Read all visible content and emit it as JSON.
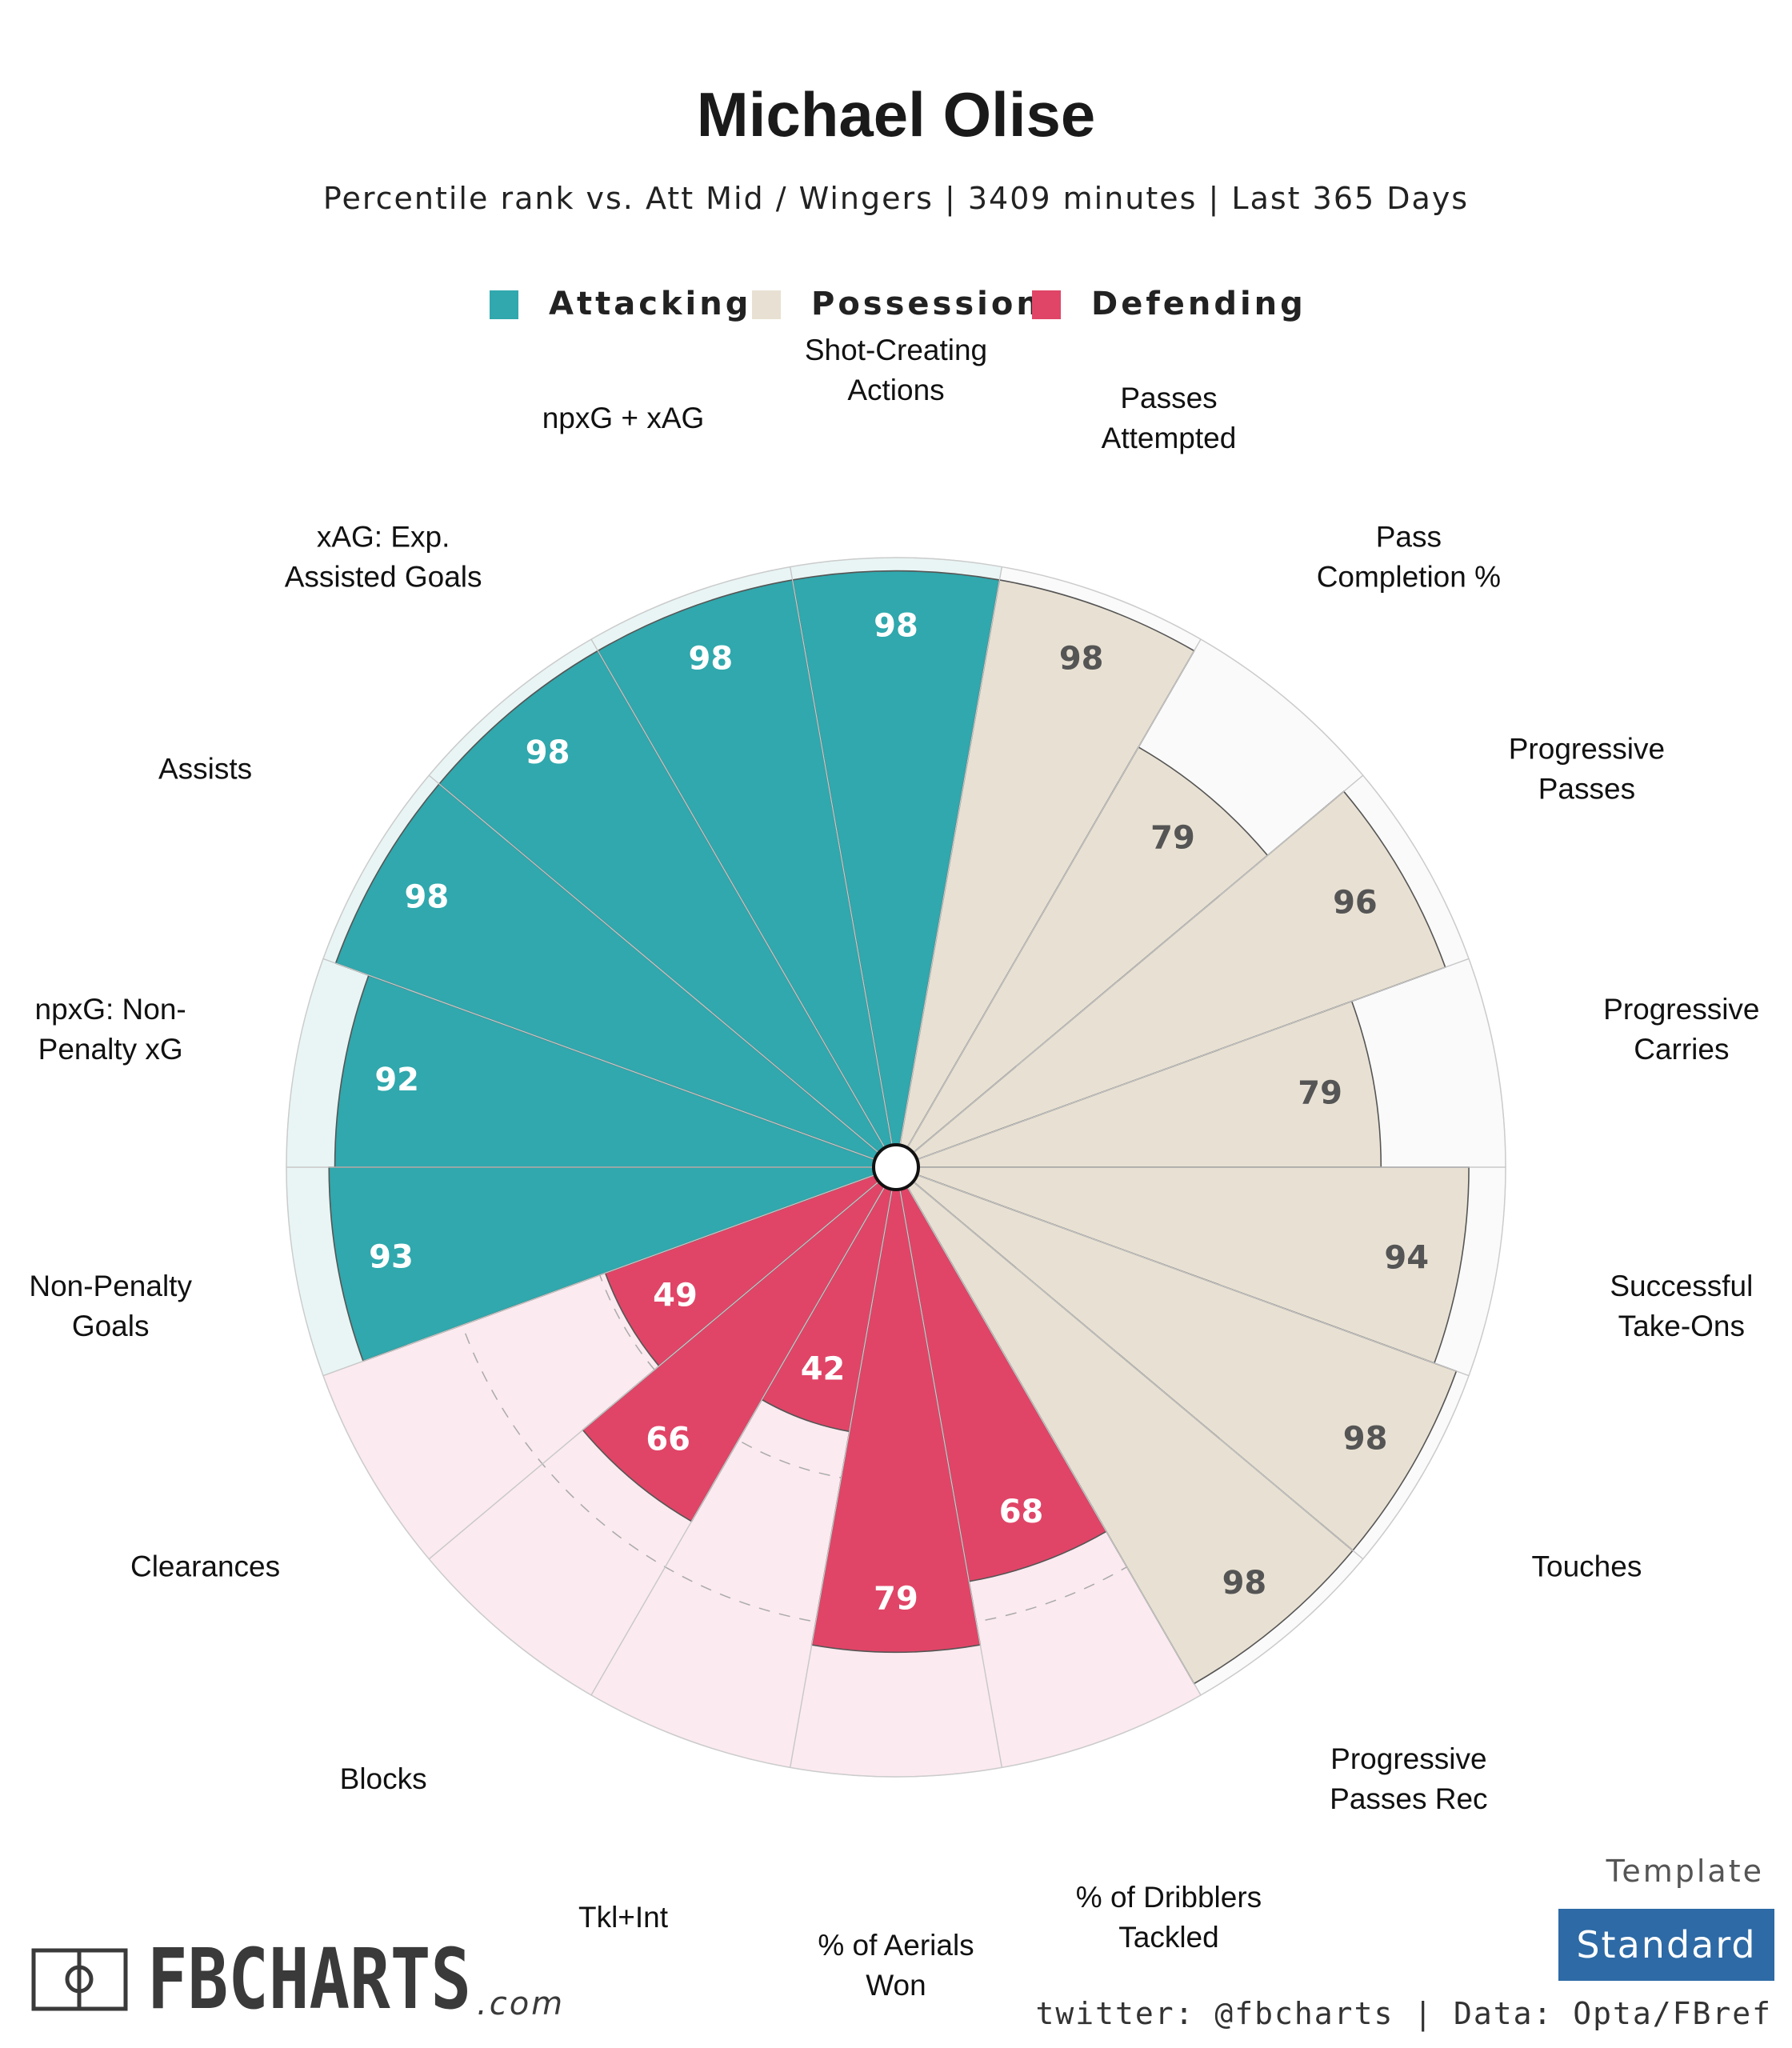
{
  "header": {
    "title": "Michael Olise",
    "subtitle": "Percentile rank vs. Att Mid / Wingers | 3409 minutes | Last 365 Days"
  },
  "legend": [
    {
      "label": "Attacking",
      "color": "#30a8ad"
    },
    {
      "label": "Possession",
      "color": "#e8e1d3"
    },
    {
      "label": "Defending",
      "color": "#e04567"
    }
  ],
  "chart_data": {
    "type": "polar-bar",
    "scale_max": 100,
    "categories_colors": {
      "Attacking": {
        "fill": "#30a8ad",
        "bg": "#e9f5f5",
        "text": "#ffffff"
      },
      "Possession": {
        "fill": "#e8e1d3",
        "bg": "#fafafa",
        "text": "#555555"
      },
      "Defending": {
        "fill": "#e04567",
        "bg": "#fbeaef",
        "text": "#ffffff"
      }
    },
    "metrics": [
      {
        "label": "Shot-Creating Actions",
        "lines": [
          "Shot-Creating",
          "Actions"
        ],
        "value": 98,
        "category": "Attacking"
      },
      {
        "label": "Passes Attempted",
        "lines": [
          "Passes",
          "Attempted"
        ],
        "value": 98,
        "category": "Possession"
      },
      {
        "label": "Pass Completion %",
        "lines": [
          "Pass",
          "Completion %"
        ],
        "value": 79,
        "category": "Possession"
      },
      {
        "label": "Progressive Passes",
        "lines": [
          "Progressive",
          "Passes"
        ],
        "value": 96,
        "category": "Possession"
      },
      {
        "label": "Progressive Carries",
        "lines": [
          "Progressive",
          "Carries"
        ],
        "value": 79,
        "category": "Possession"
      },
      {
        "label": "Successful Take-Ons",
        "lines": [
          "Successful",
          "Take-Ons"
        ],
        "value": 94,
        "category": "Possession"
      },
      {
        "label": "Touches",
        "lines": [
          "Touches"
        ],
        "value": 98,
        "category": "Possession"
      },
      {
        "label": "Progressive Passes Rec",
        "lines": [
          "Progressive",
          "Passes Rec"
        ],
        "value": 98,
        "category": "Possession"
      },
      {
        "label": "% of Dribblers Tackled",
        "lines": [
          "% of Dribblers",
          "Tackled"
        ],
        "value": 68,
        "category": "Defending"
      },
      {
        "label": "% of Aerials Won",
        "lines": [
          "% of Aerials",
          "Won"
        ],
        "value": 79,
        "category": "Defending"
      },
      {
        "label": "Tkl+Int",
        "lines": [
          "Tkl+Int"
        ],
        "value": 42,
        "category": "Defending"
      },
      {
        "label": "Blocks",
        "lines": [
          "Blocks"
        ],
        "value": 66,
        "category": "Defending"
      },
      {
        "label": "Clearances",
        "lines": [
          "Clearances"
        ],
        "value": 49,
        "category": "Defending"
      },
      {
        "label": "Non-Penalty Goals",
        "lines": [
          "Non-Penalty",
          "Goals"
        ],
        "value": 93,
        "category": "Attacking"
      },
      {
        "label": "npxG: Non-Penalty xG",
        "lines": [
          "npxG: Non-",
          "Penalty xG"
        ],
        "value": 92,
        "category": "Attacking"
      },
      {
        "label": "Assists",
        "lines": [
          "Assists"
        ],
        "value": 98,
        "category": "Attacking"
      },
      {
        "label": "xAG: Exp. Assisted Goals",
        "lines": [
          "xAG: Exp.",
          "Assisted Goals"
        ],
        "value": 98,
        "category": "Attacking"
      },
      {
        "label": "npxG + xAG",
        "lines": [
          "npxG + xAG"
        ],
        "value": 98,
        "category": "Attacking"
      }
    ]
  },
  "footer": {
    "template_label": "Template",
    "template_value": "Standard",
    "template_color": "#2d6aa6",
    "credit": "twitter: @fbcharts | Data: Opta/FBref",
    "logo_main": "FBCHARTS",
    "logo_sub": ".com"
  }
}
